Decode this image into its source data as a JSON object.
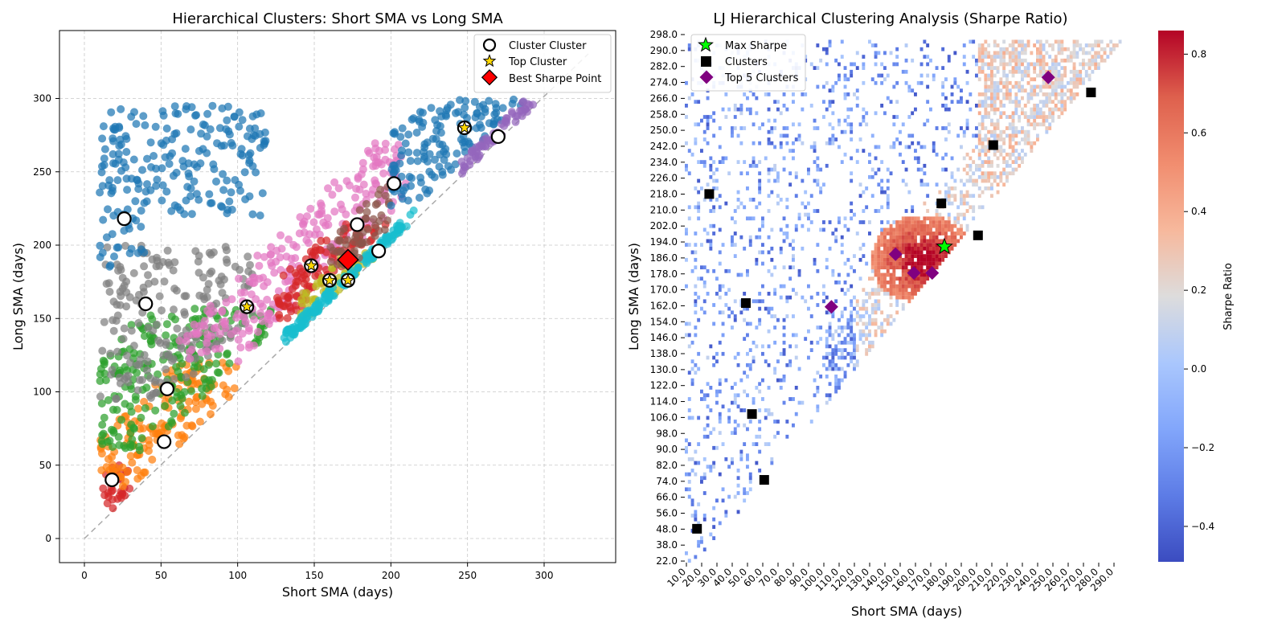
{
  "chart_data": [
    {
      "type": "scatter",
      "title": "Hierarchical Clusters: Short SMA vs Long SMA",
      "xlabel": "Short SMA (days)",
      "ylabel": "Long SMA (days)",
      "xlim": [
        -17,
        346
      ],
      "ylim": [
        -16,
        347
      ],
      "xticks": [
        "0",
        "50",
        "100",
        "150",
        "200",
        "250",
        "300"
      ],
      "yticks": [
        "0",
        "50",
        "100",
        "150",
        "200",
        "250",
        "300"
      ],
      "grid": true,
      "legend_position": "upper-right",
      "legend": [
        {
          "label": "Cluster Cluster",
          "marker": "open-circle"
        },
        {
          "label": "Top Cluster",
          "marker": "gold-star"
        },
        {
          "label": "Best Sharpe Point",
          "marker": "red-diamond"
        }
      ],
      "diagonal": {
        "from": [
          0,
          0
        ],
        "to": [
          330,
          330
        ],
        "color": "#aaaaaa",
        "style": "dashed"
      },
      "clusters": [
        {
          "color": "#d62728",
          "range": [
            [
              10,
              30
            ],
            [
              20,
              50
            ]
          ]
        },
        {
          "color": "#ff7f0e",
          "range": [
            [
              10,
              100
            ],
            [
              35,
              120
            ]
          ]
        },
        {
          "color": "#2ca02c",
          "range": [
            [
              10,
              125
            ],
            [
              60,
              160
            ]
          ]
        },
        {
          "color": "#7f7f7f",
          "range": [
            [
              10,
              110
            ],
            [
              95,
              200
            ]
          ]
        },
        {
          "color": "#1f77b4",
          "range": [
            [
              10,
              120
            ],
            [
              185,
              295
            ]
          ]
        },
        {
          "color": "#e377c2",
          "range": [
            [
              60,
              210
            ],
            [
              120,
              270
            ]
          ]
        },
        {
          "color": "#d62728",
          "range": [
            [
              125,
              200
            ],
            [
              150,
              215
            ]
          ]
        },
        {
          "color": "#bcbd22",
          "range": [
            [
              140,
              190
            ],
            [
              150,
              195
            ]
          ]
        },
        {
          "color": "#17becf",
          "range": [
            [
              130,
              215
            ],
            [
              130,
              225
            ]
          ]
        },
        {
          "color": "#8c564b",
          "range": [
            [
              160,
              200
            ],
            [
              185,
              240
            ]
          ]
        },
        {
          "color": "#1f77b4",
          "range": [
            [
              200,
              300
            ],
            [
              225,
              300
            ]
          ]
        },
        {
          "color": "#9467bd",
          "range": [
            [
              245,
              300
            ],
            [
              245,
              300
            ]
          ]
        }
      ],
      "cluster_centers": [
        [
          18,
          40
        ],
        [
          26,
          218
        ],
        [
          40,
          160
        ],
        [
          52,
          66
        ],
        [
          54,
          102
        ],
        [
          106,
          158
        ],
        [
          148,
          186
        ],
        [
          160,
          176
        ],
        [
          172,
          176
        ],
        [
          178,
          214
        ],
        [
          192,
          196
        ],
        [
          202,
          242
        ],
        [
          248,
          280
        ],
        [
          270,
          274
        ]
      ],
      "top_clusters": [
        [
          106,
          158
        ],
        [
          148,
          186
        ],
        [
          160,
          176
        ],
        [
          172,
          176
        ],
        [
          248,
          280
        ]
      ],
      "best_sharpe_point": [
        172,
        190
      ]
    },
    {
      "type": "heatmap",
      "title": "LJ Hierarchical Clustering Analysis (Sharpe Ratio)",
      "xlabel": "Short SMA (days)",
      "ylabel": "Long SMA (days)",
      "xticks": [
        "10.0",
        "20.0",
        "30.0",
        "40.0",
        "50.0",
        "60.0",
        "70.0",
        "80.0",
        "90.0",
        "100.0",
        "110.0",
        "120.0",
        "130.0",
        "140.0",
        "150.0",
        "160.0",
        "170.0",
        "180.0",
        "190.0",
        "200.0",
        "210.0",
        "220.0",
        "230.0",
        "240.0",
        "250.0",
        "260.0",
        "270.0",
        "280.0",
        "290.0"
      ],
      "yticks": [
        "298.0",
        "290.0",
        "282.0",
        "274.0",
        "266.0",
        "258.0",
        "250.0",
        "242.0",
        "234.0",
        "226.0",
        "218.0",
        "210.0",
        "202.0",
        "194.0",
        "186.0",
        "178.0",
        "170.0",
        "162.0",
        "154.0",
        "146.0",
        "138.0",
        "130.0",
        "122.0",
        "114.0",
        "106.0",
        "98.0",
        "90.0",
        "82.0",
        "74.0",
        "66.0",
        "56.0",
        "48.0",
        "38.0",
        "22.0"
      ],
      "x_range": [
        10,
        300
      ],
      "y_range": [
        22,
        300
      ],
      "colormap": "coolwarm",
      "colorbar": {
        "label": "Sharpe Ratio",
        "min": -0.49,
        "max": 0.86,
        "ticks": [
          "0.8",
          "0.6",
          "0.4",
          "0.2",
          "0.0",
          "−0.2",
          "−0.4"
        ]
      },
      "legend_position": "upper-left",
      "legend": [
        {
          "label": "Max Sharpe",
          "marker": "green-star"
        },
        {
          "label": "Clusters",
          "marker": "black-square"
        },
        {
          "label": "Top 5 Clusters",
          "marker": "purple-diamond"
        }
      ],
      "max_sharpe": [
        180,
        190
      ],
      "clusters": [
        [
          18,
          40
        ],
        [
          26,
          218
        ],
        [
          50,
          160
        ],
        [
          62,
          66
        ],
        [
          54,
          101
        ],
        [
          178,
          213
        ],
        [
          202,
          196
        ],
        [
          212,
          244
        ],
        [
          276,
          272
        ]
      ],
      "top5_clusters": [
        [
          106,
          158
        ],
        [
          148,
          186
        ],
        [
          160,
          176
        ],
        [
          172,
          176
        ],
        [
          248,
          280
        ]
      ],
      "peak_region": {
        "center": [
          165,
          180
        ],
        "sharpe": 0.75
      }
    }
  ]
}
